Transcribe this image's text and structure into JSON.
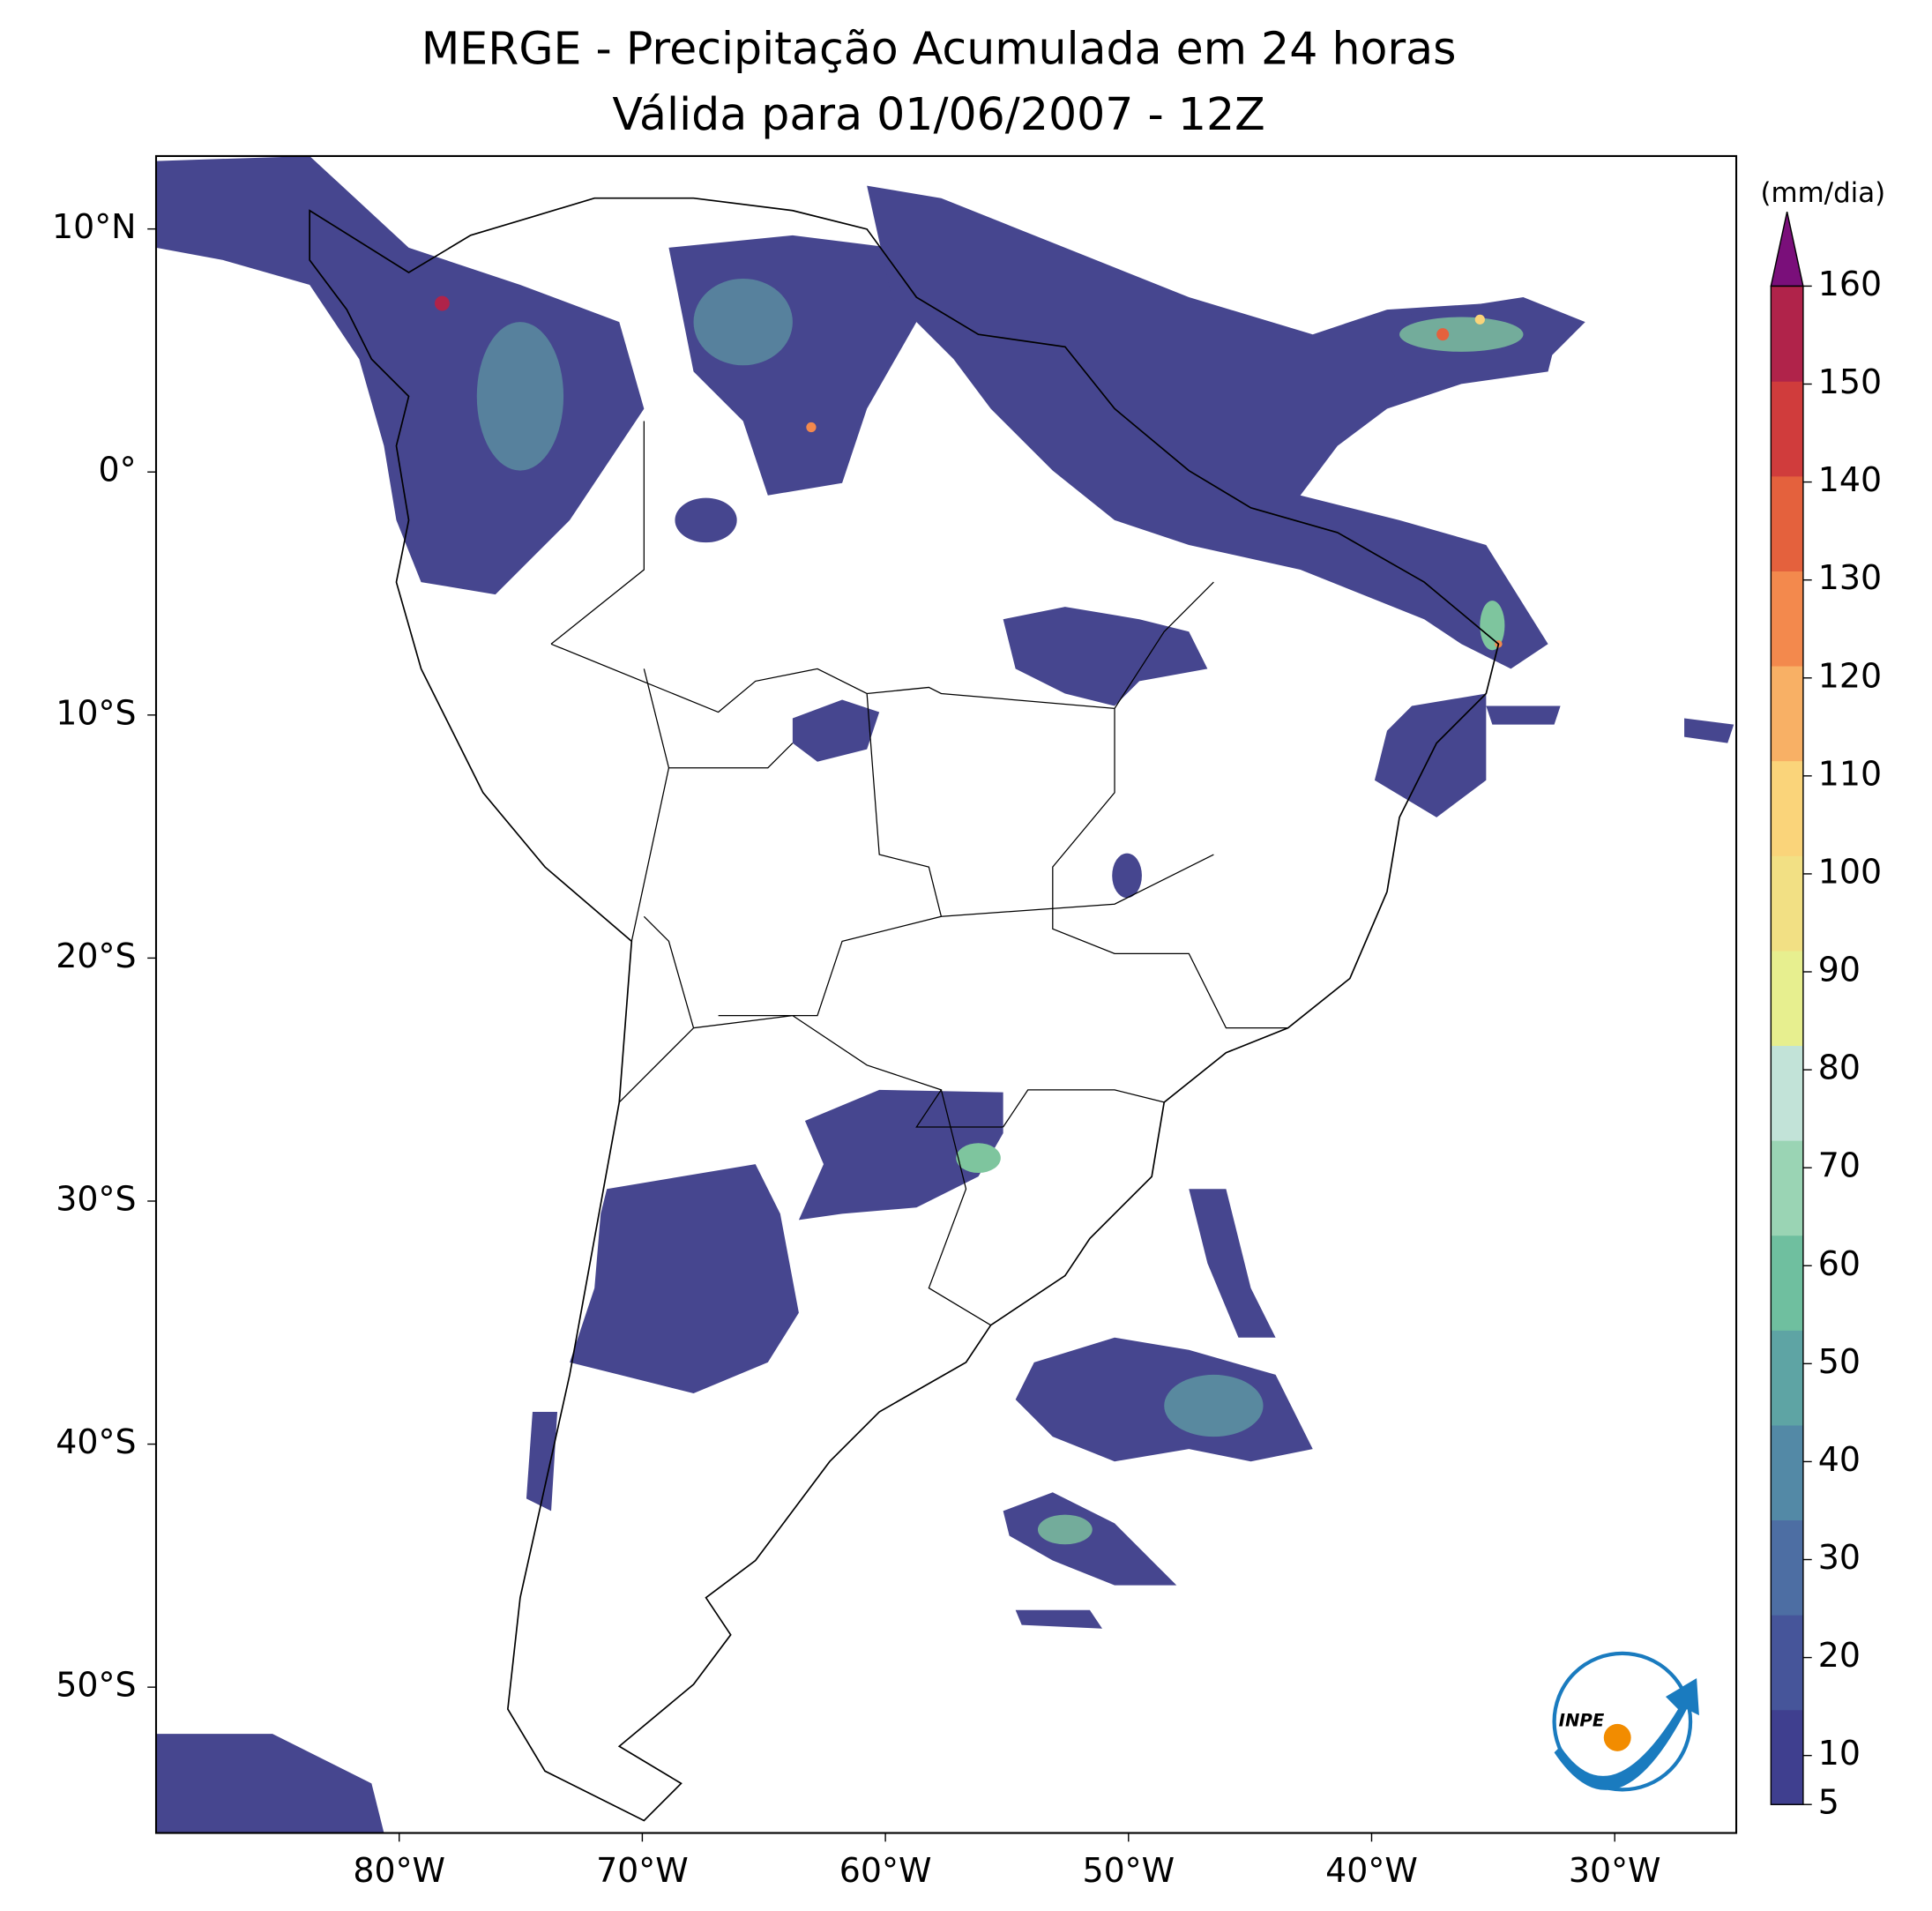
{
  "title": [
    "MERGE - Precipitação Acumulada em 24 horas",
    "Válida para 01/06/2007 - 12Z"
  ],
  "map": {
    "lonlim": [
      -90,
      -25
    ],
    "latlim": [
      -56,
      13
    ],
    "lon_ticks": [
      {
        "value": -80,
        "label": "80°W"
      },
      {
        "value": -70,
        "label": "70°W"
      },
      {
        "value": -60,
        "label": "60°W"
      },
      {
        "value": -50,
        "label": "50°W"
      },
      {
        "value": -40,
        "label": "40°W"
      },
      {
        "value": -30,
        "label": "30°W"
      }
    ],
    "lat_ticks": [
      {
        "value": 10,
        "label": "10°N"
      },
      {
        "value": 0,
        "label": "0°"
      },
      {
        "value": -10,
        "label": "10°S"
      },
      {
        "value": -20,
        "label": "20°S"
      },
      {
        "value": -30,
        "label": "30°S"
      },
      {
        "value": -40,
        "label": "40°S"
      },
      {
        "value": -50,
        "label": "50°S"
      }
    ]
  },
  "colorbar": {
    "label": "(mm/dia)",
    "range": [
      5,
      160
    ],
    "ticks": [
      5,
      10,
      20,
      30,
      40,
      50,
      60,
      70,
      80,
      90,
      100,
      110,
      120,
      130,
      140,
      150,
      160
    ],
    "colors": [
      "#3f3f8f",
      "#46559a",
      "#4d6ea3",
      "#5389a6",
      "#5ea4a4",
      "#6fbf9f",
      "#9ad4b4",
      "#c2e3d8",
      "#e7ef8f",
      "#f2e084",
      "#fad47a",
      "#f8b065",
      "#f3894d",
      "#e4613d",
      "#d03c3c",
      "#b0234a"
    ],
    "extend_color": "#7a0f7a"
  },
  "logo_text": "INPE"
}
